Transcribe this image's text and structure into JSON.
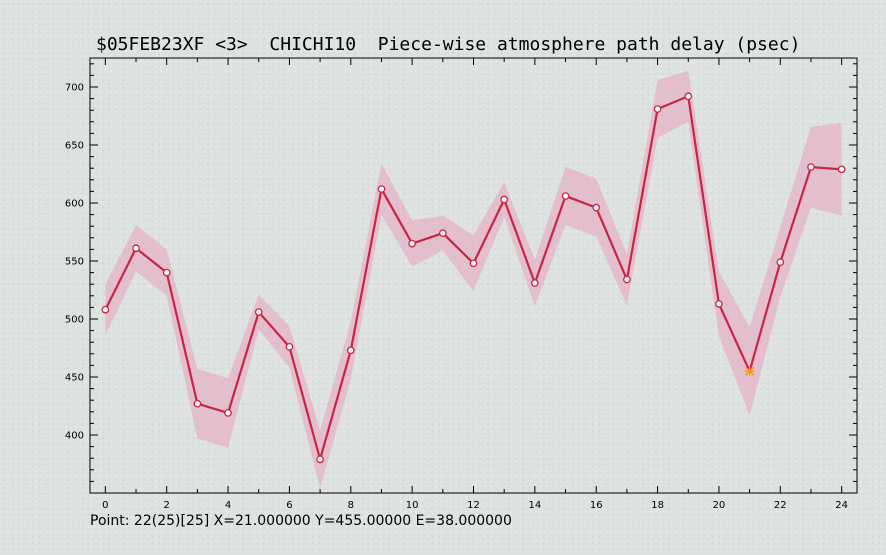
{
  "chart_data": {
    "type": "line",
    "title": "$05FEB23XF <3>  CHICHI10  Piece-wise atmosphere path delay (psec)",
    "xlabel": "",
    "ylabel": "",
    "xlim": [
      -0.5,
      24.5
    ],
    "ylim": [
      350,
      725
    ],
    "x_ticks": [
      0,
      2,
      4,
      6,
      8,
      10,
      12,
      14,
      16,
      18,
      20,
      22,
      24
    ],
    "y_ticks": [
      400,
      450,
      500,
      550,
      600,
      650,
      700
    ],
    "grid": false,
    "series": [
      {
        "x": [
          0,
          1,
          2,
          3,
          4,
          5,
          6,
          7,
          8,
          9,
          10,
          11,
          12,
          13,
          14,
          15,
          16,
          17,
          18,
          19,
          20,
          21,
          22,
          23,
          24
        ],
        "values": [
          508,
          561,
          540,
          427,
          419,
          506,
          476,
          379,
          473,
          612,
          565,
          574,
          548,
          603,
          531,
          606,
          596,
          534,
          681,
          692,
          513,
          455,
          549,
          631,
          629
        ],
        "errors": [
          22,
          20,
          20,
          30,
          30,
          15,
          18,
          25,
          25,
          22,
          20,
          15,
          24,
          15,
          20,
          25,
          25,
          22,
          25,
          22,
          28,
          38,
          30,
          35,
          40
        ],
        "highlight_index": 21
      }
    ],
    "colors": {
      "line": "#cc2244",
      "band": "#e6b0c4",
      "marker_fill": "#ffffff",
      "highlight": "#ff9900"
    }
  },
  "status": {
    "text": "Point: 22(25)[25] X=21.000000 Y=455.00000 E=38.000000"
  }
}
